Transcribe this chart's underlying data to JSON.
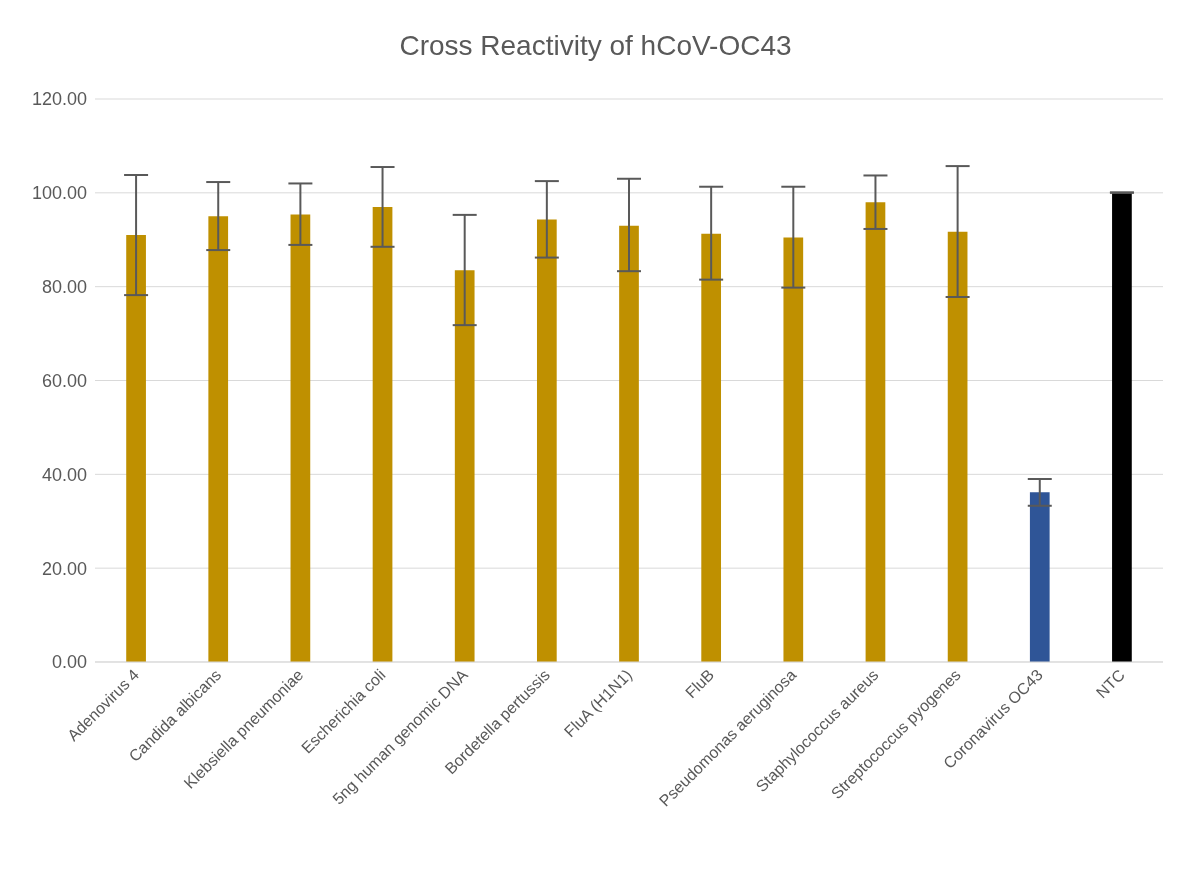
{
  "chart_data": {
    "type": "bar",
    "title": "Cross Reactivity of hCoV-OC43",
    "categories": [
      "Adenovirus 4",
      "Candida albicans",
      "Klebsiella pneumoniae",
      "Escherichia coli",
      "5ng human genomic DNA",
      "Bordetella pertussis",
      "FluA (H1N1)",
      "FluB",
      "Pseudomonas aeruginosa",
      "Staphylococcus aureus",
      "Streptococcus pyogenes",
      "Coronavirus OC43",
      "NTC"
    ],
    "values": [
      91.0,
      95.0,
      95.4,
      97.0,
      83.5,
      94.3,
      93.0,
      91.3,
      90.5,
      98.0,
      91.7,
      36.2,
      100.0
    ],
    "errors": [
      [
        78.2,
        103.8
      ],
      [
        87.8,
        102.3
      ],
      [
        88.9,
        102.0
      ],
      [
        88.5,
        105.5
      ],
      [
        71.8,
        95.3
      ],
      [
        86.2,
        102.5
      ],
      [
        83.3,
        103.0
      ],
      [
        81.5,
        101.3
      ],
      [
        79.8,
        101.3
      ],
      [
        92.3,
        103.7
      ],
      [
        77.8,
        105.7
      ],
      [
        33.3,
        39.0
      ],
      [
        100.0,
        100.1
      ]
    ],
    "colors": [
      "#bf9000",
      "#bf9000",
      "#bf9000",
      "#bf9000",
      "#bf9000",
      "#bf9000",
      "#bf9000",
      "#bf9000",
      "#bf9000",
      "#bf9000",
      "#bf9000",
      "#2f5597",
      "#000000"
    ],
    "ylim": [
      0,
      120
    ],
    "yticks": [
      {
        "value": 0,
        "label": "0.00"
      },
      {
        "value": 20,
        "label": "20.00"
      },
      {
        "value": 40,
        "label": "40.00"
      },
      {
        "value": 60,
        "label": "60.00"
      },
      {
        "value": 80,
        "label": "80.00"
      },
      {
        "value": 100,
        "label": "100.00"
      },
      {
        "value": 120,
        "label": "120.00"
      }
    ],
    "grid": "y"
  }
}
